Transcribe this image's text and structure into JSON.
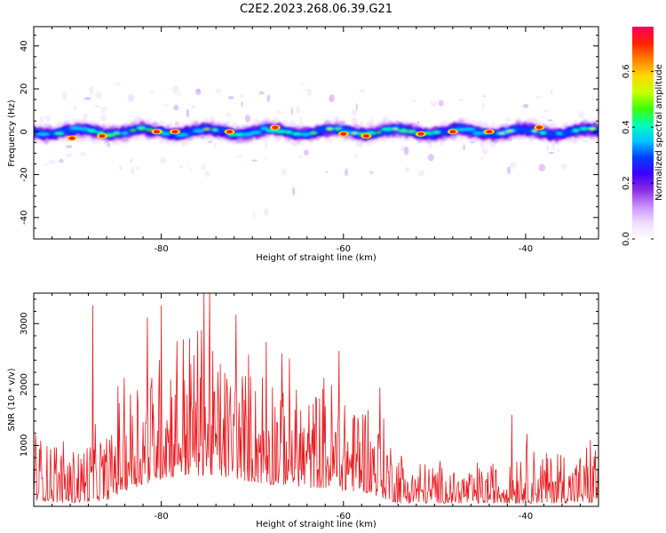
{
  "figure": {
    "title": "C2E2.2023.268.06.39.G21"
  },
  "chart_data": [
    {
      "type": "heatmap",
      "title": "C2E2.2023.268.06.39.G21",
      "xlabel": "Height of straight line (km)",
      "ylabel": "Frequency (Hz)",
      "xlim": [
        -94,
        -32
      ],
      "ylim": [
        -50,
        49
      ],
      "x_ticks": [
        -80,
        -60,
        -40
      ],
      "x_tick_labels": [
        "-80",
        "-60",
        "-40"
      ],
      "y_ticks": [
        -40,
        -20,
        0,
        20,
        40
      ],
      "y_tick_labels": [
        "-40",
        "-20",
        "0",
        "20",
        "40"
      ],
      "colorbar": {
        "label": "Normalized spectral amplitude",
        "range": [
          0.0,
          0.76
        ],
        "ticks": [
          0.0,
          0.2,
          0.4,
          0.6
        ],
        "tick_labels": [
          "0.0",
          "0.2",
          "0.4",
          "0.6"
        ],
        "colormap": [
          "#ffffff",
          "#f0dcff",
          "#c890ff",
          "#8a2be2",
          "#3c00ff",
          "#0040ff",
          "#00c8ff",
          "#00ffb4",
          "#40ff00",
          "#c8ff00",
          "#ffd700",
          "#ff8000",
          "#ff2000",
          "#ff0060"
        ]
      },
      "band_center_hz": 0,
      "band_halfwidth_hz": 4,
      "peaks": [
        {
          "x": -89.8,
          "y": -3
        },
        {
          "x": -86.5,
          "y": -2
        },
        {
          "x": -80.5,
          "y": 0
        },
        {
          "x": -78.5,
          "y": 0
        },
        {
          "x": -72.5,
          "y": 0
        },
        {
          "x": -67.5,
          "y": 2
        },
        {
          "x": -60.0,
          "y": -1
        },
        {
          "x": -57.5,
          "y": -2
        },
        {
          "x": -51.5,
          "y": -1
        },
        {
          "x": -48.0,
          "y": 0
        },
        {
          "x": -44.0,
          "y": 0
        },
        {
          "x": -38.5,
          "y": 2
        }
      ]
    },
    {
      "type": "line",
      "xlabel": "Height of straight line (km)",
      "ylabel": "SNR (10 * v/v)",
      "xlim": [
        -94,
        -32
      ],
      "ylim": [
        0,
        3500
      ],
      "x_ticks": [
        -80,
        -60,
        -40
      ],
      "x_tick_labels": [
        "-80",
        "-60",
        "-40"
      ],
      "y_ticks": [
        1000,
        2000,
        3000
      ],
      "y_tick_labels": [
        "1000",
        "2000",
        "3000"
      ],
      "line_color": "#e8191e",
      "envelope": {
        "x": [
          -94,
          -90,
          -86,
          -84,
          -82,
          -80,
          -78,
          -76,
          -74,
          -72,
          -70,
          -68,
          -66,
          -64,
          -62,
          -60,
          -58,
          -56,
          -54,
          -52,
          -50,
          -48,
          -46,
          -44,
          -42,
          -40,
          -38,
          -36,
          -34,
          -32
        ],
        "upper": [
          1500,
          1250,
          1450,
          2600,
          2900,
          3000,
          3350,
          3500,
          3000,
          2900,
          2700,
          2800,
          2600,
          2200,
          2400,
          2300,
          2300,
          1800,
          1200,
          900,
          850,
          800,
          800,
          850,
          1000,
          1400,
          1100,
          1200,
          1000,
          1500
        ],
        "lower": [
          100,
          50,
          100,
          250,
          350,
          450,
          500,
          500,
          500,
          450,
          400,
          350,
          350,
          300,
          300,
          250,
          250,
          150,
          50,
          50,
          50,
          50,
          50,
          50,
          50,
          50,
          50,
          50,
          50,
          50
        ]
      },
      "peaks": [
        {
          "x": -87.5,
          "y": 3300
        },
        {
          "x": -81.5,
          "y": 3100
        },
        {
          "x": -80.0,
          "y": 3300
        },
        {
          "x": -75.3,
          "y": 3550
        },
        {
          "x": -74.7,
          "y": 3500
        },
        {
          "x": -71.8,
          "y": 3150
        },
        {
          "x": -68.5,
          "y": 2700
        },
        {
          "x": -60.5,
          "y": 2550
        },
        {
          "x": -56.0,
          "y": 1950
        },
        {
          "x": -41.5,
          "y": 1500
        }
      ],
      "n_points": 900
    }
  ]
}
